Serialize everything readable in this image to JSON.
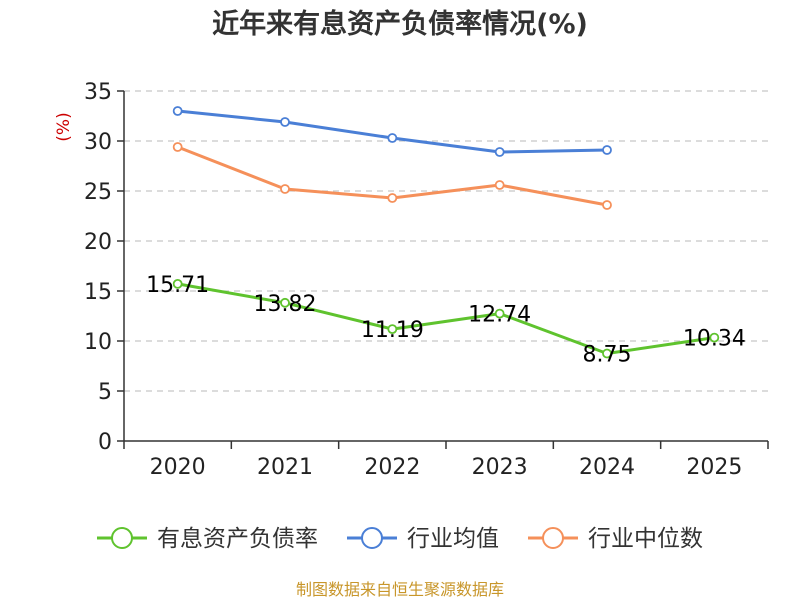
{
  "chart_data": {
    "type": "line",
    "title": "近年来有息资产负债率情况(%)",
    "ylabel": "(%)",
    "xlabel": "",
    "categories": [
      "2020",
      "2021",
      "2022",
      "2023",
      "2024",
      "2025"
    ],
    "ylim": [
      0,
      35
    ],
    "yticks": [
      0,
      5,
      10,
      15,
      20,
      25,
      30,
      35
    ],
    "grid": true,
    "legend_position": "bottom",
    "series": [
      {
        "name": "有息资产负债率",
        "color": "#5fc32e",
        "values": [
          15.71,
          13.82,
          11.19,
          12.74,
          8.75,
          10.34
        ],
        "labels": [
          "15.71",
          "13.82",
          "11.19",
          "12.74",
          "8.75",
          "10.34"
        ]
      },
      {
        "name": "行业均值",
        "color": "#4a7fd6",
        "values": [
          33.0,
          31.9,
          30.3,
          28.9,
          29.1,
          null
        ]
      },
      {
        "name": "行业中位数",
        "color": "#f5905a",
        "values": [
          29.4,
          25.2,
          24.3,
          25.6,
          23.6,
          null
        ]
      }
    ],
    "source": "制图数据来自恒生聚源数据库"
  }
}
